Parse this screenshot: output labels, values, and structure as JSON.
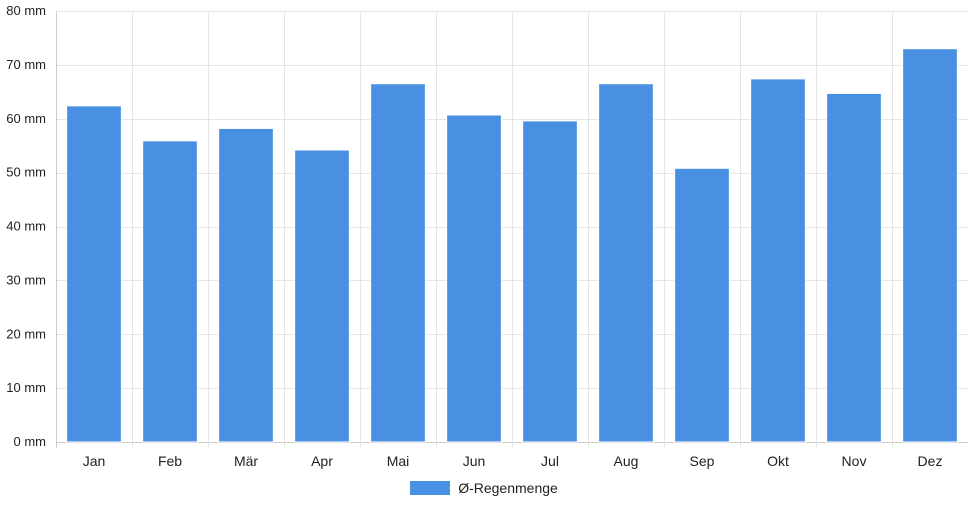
{
  "chart_data": {
    "type": "bar",
    "categories": [
      "Jan",
      "Feb",
      "Mär",
      "Apr",
      "Mai",
      "Jun",
      "Jul",
      "Aug",
      "Sep",
      "Okt",
      "Nov",
      "Dez"
    ],
    "series": [
      {
        "name": "Ø-Regenmenge",
        "values": [
          62.4,
          55.9,
          58.2,
          54.2,
          66.5,
          60.7,
          59.6,
          66.5,
          50.8,
          67.4,
          64.7,
          73.0
        ]
      }
    ],
    "ylim": [
      0,
      80
    ],
    "yticks": [
      0,
      10,
      20,
      30,
      40,
      50,
      60,
      70,
      80
    ],
    "ytick_labels": [
      "0 mm",
      "10 mm",
      "20 mm",
      "30 mm",
      "40 mm",
      "50 mm",
      "60 mm",
      "70 mm",
      "80 mm"
    ],
    "grid": true,
    "legend_position": "bottom",
    "colors": {
      "bar": "#4a90e2",
      "grid": "#e6e6e6",
      "axis": "#cccccc"
    }
  }
}
